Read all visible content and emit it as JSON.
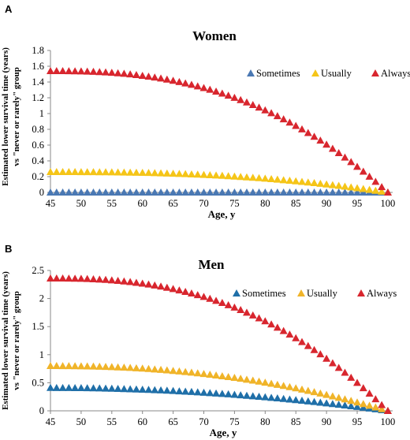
{
  "chart_data": [
    {
      "panel": "A",
      "type": "scatter",
      "marker": "triangle",
      "title": "Women",
      "xlabel": "Age, y",
      "ylabel_line1": "Estimated lower survival time (years)",
      "ylabel_line2": "vs \"never or rarely\" group",
      "xlim": [
        45,
        100
      ],
      "ylim": [
        0,
        1.8
      ],
      "xticks": [
        45,
        50,
        55,
        60,
        65,
        70,
        75,
        80,
        85,
        90,
        95,
        100
      ],
      "yticks": [
        "0",
        "0.2",
        "0.4",
        "0.6",
        "0.8",
        "1",
        "1.2",
        "1.4",
        "1.6",
        "1.8"
      ],
      "grid": false,
      "legend_position": "top-right",
      "series": [
        {
          "name": "Sometimes",
          "color": "#4a78b3",
          "start": 0.0,
          "shape_power": 2.5
        },
        {
          "name": "Usually",
          "color": "#f5c518",
          "start": 0.26,
          "shape_power": 2.5
        },
        {
          "name": "Always",
          "color": "#d8262e",
          "start": 1.54,
          "shape_power": 2.5
        }
      ]
    },
    {
      "panel": "B",
      "type": "scatter",
      "marker": "triangle",
      "title": "Men",
      "xlabel": "Age, y",
      "ylabel_line1": "Estimated lower survival time (years)",
      "ylabel_line2": "vs \"never or rarely\" group",
      "xlim": [
        45,
        100
      ],
      "ylim": [
        0,
        2.5
      ],
      "xticks": [
        45,
        50,
        55,
        60,
        65,
        70,
        75,
        80,
        85,
        90,
        95,
        100
      ],
      "yticks": [
        "0",
        "0.5",
        "1",
        "1.5",
        "2",
        "2.5"
      ],
      "grid": false,
      "legend_position": "top-right",
      "series": [
        {
          "name": "Sometimes",
          "color": "#1f6fa8",
          "start": 0.41,
          "shape_power": 2.0
        },
        {
          "name": "Usually",
          "color": "#f0b429",
          "start": 0.8,
          "shape_power": 2.2
        },
        {
          "name": "Always",
          "color": "#d8262e",
          "start": 2.36,
          "shape_power": 2.5
        }
      ]
    }
  ]
}
